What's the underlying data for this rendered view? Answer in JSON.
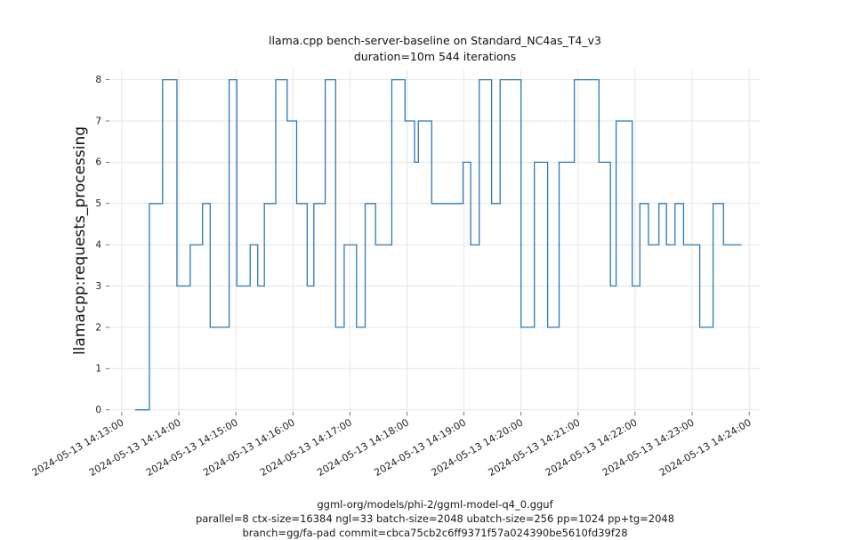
{
  "chart_data": {
    "type": "line",
    "subtype": "step-after",
    "title": "llama.cpp bench-server-baseline on Standard_NC4as_T4_v3",
    "subtitle": "duration=10m 544 iterations",
    "ylabel": "llamacpp:requests_processing",
    "xlabel": "",
    "footer": [
      "ggml-org/models/phi-2/ggml-model-q4_0.gguf",
      "parallel=8 ctx-size=16384 ngl=33 batch-size=2048 ubatch-size=256 pp=1024 pp+tg=2048",
      "branch=gg/fa-pad commit=cbca75cb2c6ff9371f57a024390be5610fd39f28"
    ],
    "line_color": "#2e79b5",
    "grid_color": "#e6e6e6",
    "tick_color": "#555555",
    "label_color": "#222222",
    "grid": true,
    "legend": "none",
    "y_ticks": [
      0,
      1,
      2,
      3,
      4,
      5,
      6,
      7,
      8
    ],
    "y_domain": [
      -0.05,
      8.25
    ],
    "x_domain_seconds": [
      -13,
      672
    ],
    "x_ticks": [
      {
        "t": 0,
        "label": "2024-05-13 14:13:00"
      },
      {
        "t": 60,
        "label": "2024-05-13 14:14:00"
      },
      {
        "t": 120,
        "label": "2024-05-13 14:15:00"
      },
      {
        "t": 180,
        "label": "2024-05-13 14:16:00"
      },
      {
        "t": 240,
        "label": "2024-05-13 14:17:00"
      },
      {
        "t": 300,
        "label": "2024-05-13 14:18:00"
      },
      {
        "t": 360,
        "label": "2024-05-13 14:19:00"
      },
      {
        "t": 420,
        "label": "2024-05-13 14:20:00"
      },
      {
        "t": 480,
        "label": "2024-05-13 14:21:00"
      },
      {
        "t": 540,
        "label": "2024-05-13 14:22:00"
      },
      {
        "t": 600,
        "label": "2024-05-13 14:23:00"
      },
      {
        "t": 660,
        "label": "2024-05-13 14:24:00"
      }
    ],
    "series": [
      {
        "name": "llamacpp:requests_processing",
        "mode": "step-after",
        "end_t": 652,
        "points": [
          [
            14,
            0
          ],
          [
            29,
            5
          ],
          [
            43,
            8
          ],
          [
            58,
            3
          ],
          [
            72,
            4
          ],
          [
            85,
            5
          ],
          [
            93,
            2
          ],
          [
            113,
            8
          ],
          [
            121,
            3
          ],
          [
            135,
            4
          ],
          [
            143,
            3
          ],
          [
            150,
            5
          ],
          [
            162,
            8
          ],
          [
            174,
            7
          ],
          [
            184,
            5
          ],
          [
            195,
            3
          ],
          [
            202,
            5
          ],
          [
            214,
            8
          ],
          [
            225,
            2
          ],
          [
            234,
            4
          ],
          [
            247,
            2
          ],
          [
            256,
            5
          ],
          [
            267,
            4
          ],
          [
            284,
            8
          ],
          [
            298,
            7
          ],
          [
            308,
            6
          ],
          [
            312,
            7
          ],
          [
            326,
            5
          ],
          [
            359,
            6
          ],
          [
            367,
            4
          ],
          [
            376,
            8
          ],
          [
            389,
            5
          ],
          [
            398,
            8
          ],
          [
            420,
            2
          ],
          [
            434,
            6
          ],
          [
            448,
            2
          ],
          [
            460,
            6
          ],
          [
            476,
            8
          ],
          [
            502,
            6
          ],
          [
            514,
            3
          ],
          [
            520,
            7
          ],
          [
            537,
            3
          ],
          [
            545,
            5
          ],
          [
            554,
            4
          ],
          [
            565,
            5
          ],
          [
            573,
            4
          ],
          [
            582,
            5
          ],
          [
            591,
            4
          ],
          [
            608,
            2
          ],
          [
            622,
            5
          ],
          [
            633,
            4
          ]
        ]
      }
    ]
  }
}
